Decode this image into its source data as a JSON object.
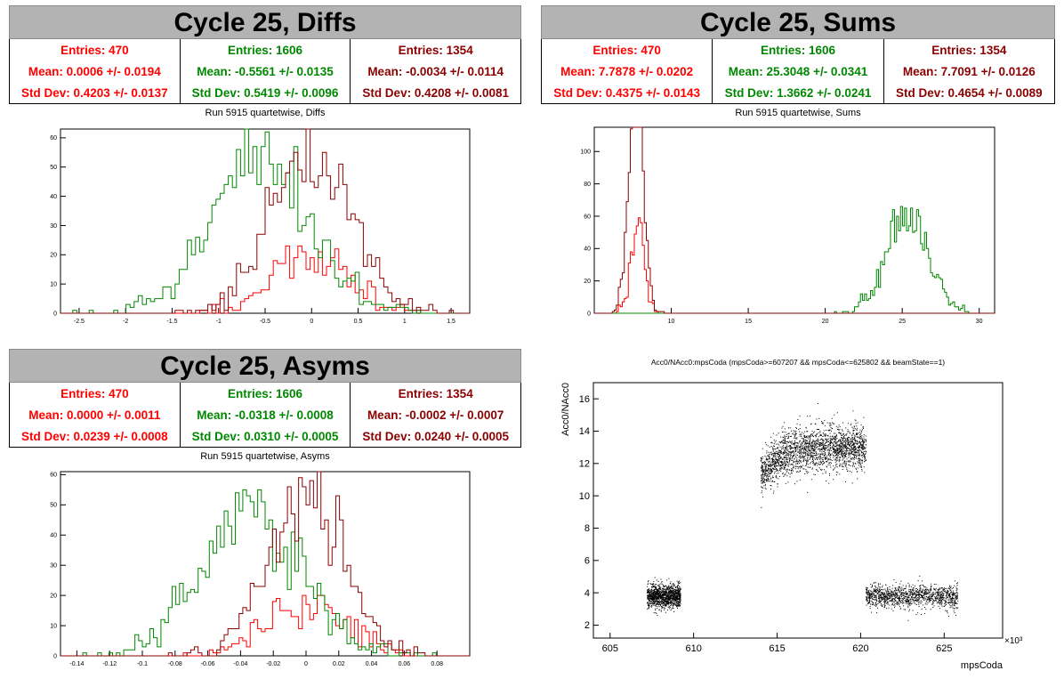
{
  "colors": {
    "red": "#ff0000",
    "green": "#008800",
    "darkred": "#8b0000",
    "banner": "#b3b3b3"
  },
  "panels": [
    {
      "id": "diffs",
      "banner": "Cycle 25, Diffs",
      "stats": [
        {
          "color": "#ff0000",
          "entries": "Entries: 470",
          "mean": "Mean: 0.0006 +/- 0.0194",
          "std": "Std Dev: 0.4203 +/- 0.0137"
        },
        {
          "color": "#008800",
          "entries": "Entries: 1606",
          "mean": "Mean: -0.5561 +/- 0.0135",
          "std": "Std Dev: 0.5419 +/- 0.0096"
        },
        {
          "color": "#8b0000",
          "entries": "Entries: 1354",
          "mean": "Mean: -0.0034 +/- 0.0114",
          "std": "Std Dev: 0.4208 +/- 0.0081"
        }
      ],
      "plot_title": "Run 5915 quartetwise, Diffs"
    },
    {
      "id": "sums",
      "banner": "Cycle 25, Sums",
      "stats": [
        {
          "color": "#ff0000",
          "entries": "Entries: 470",
          "mean": "Mean: 7.7878 +/- 0.0202",
          "std": "Std Dev: 0.4375 +/- 0.0143"
        },
        {
          "color": "#008800",
          "entries": "Entries: 1606",
          "mean": "Mean: 25.3048 +/- 0.0341",
          "std": "Std Dev: 1.3662 +/- 0.0241"
        },
        {
          "color": "#8b0000",
          "entries": "Entries: 1354",
          "mean": "Mean: 7.7091 +/- 0.0126",
          "std": "Std Dev: 0.4654 +/- 0.0089"
        }
      ],
      "plot_title": "Run 5915 quartetwise, Sums"
    },
    {
      "id": "asyms",
      "banner": "Cycle 25, Asyms",
      "stats": [
        {
          "color": "#ff0000",
          "entries": "Entries: 470",
          "mean": "Mean: 0.0000 +/- 0.0011",
          "std": "Std Dev: 0.0239 +/- 0.0008"
        },
        {
          "color": "#008800",
          "entries": "Entries: 1606",
          "mean": "Mean: -0.0318 +/- 0.0008",
          "std": "Std Dev: 0.0310 +/- 0.0005"
        },
        {
          "color": "#8b0000",
          "entries": "Entries: 1354",
          "mean": "Mean: -0.0002 +/- 0.0007",
          "std": "Std Dev: 0.0240 +/- 0.0005"
        }
      ],
      "plot_title": "Run 5915 quartetwise, Asyms"
    }
  ],
  "chart_data": [
    {
      "type": "bar",
      "id": "diffs",
      "title": "Run 5915 quartetwise, Diffs",
      "xlim": [
        -2.7,
        1.7
      ],
      "ylim": [
        0,
        63
      ],
      "xticks": [
        "-2.5",
        "-2",
        "-1.5",
        "-1",
        "-0.5",
        "0",
        "0.5",
        "1",
        "1.5"
      ],
      "yticks": [
        "0",
        "10",
        "20",
        "30",
        "40",
        "50",
        "60"
      ],
      "series": [
        {
          "color": "#ff0000",
          "mean": 0.0006,
          "std": 0.4203,
          "entries": 470
        },
        {
          "color": "#008800",
          "mean": -0.5561,
          "std": 0.5419,
          "entries": 1606
        },
        {
          "color": "#8b0000",
          "mean": -0.0034,
          "std": 0.4208,
          "entries": 1354
        }
      ]
    },
    {
      "type": "bar",
      "id": "sums",
      "title": "Run 5915 quartetwise, Sums",
      "xlim": [
        5,
        31
      ],
      "ylim": [
        0,
        115
      ],
      "xticks": [
        "10",
        "15",
        "20",
        "25",
        "30"
      ],
      "yticks": [
        "0",
        "20",
        "40",
        "60",
        "80",
        "100"
      ],
      "series": [
        {
          "color": "#ff0000",
          "mean": 7.7878,
          "std": 0.4375,
          "entries": 470
        },
        {
          "color": "#008800",
          "mean": 25.3048,
          "std": 1.3662,
          "entries": 1606
        },
        {
          "color": "#8b0000",
          "mean": 7.7091,
          "std": 0.4654,
          "entries": 1354
        }
      ]
    },
    {
      "type": "bar",
      "id": "asyms",
      "title": "Run 5915 quartetwise, Asyms",
      "xlim": [
        -0.15,
        0.1
      ],
      "ylim": [
        0,
        61
      ],
      "xticks": [
        "-0.14",
        "-0.12",
        "-0.1",
        "-0.08",
        "-0.06",
        "-0.04",
        "-0.02",
        "0",
        "0.02",
        "0.04",
        "0.06",
        "0.08"
      ],
      "yticks": [
        "0",
        "10",
        "20",
        "30",
        "40",
        "50",
        "60"
      ],
      "series": [
        {
          "color": "#ff0000",
          "mean": 0.0,
          "std": 0.0239,
          "entries": 470
        },
        {
          "color": "#008800",
          "mean": -0.0318,
          "std": 0.031,
          "entries": 1606
        },
        {
          "color": "#8b0000",
          "mean": -0.0002,
          "std": 0.024,
          "entries": 1354
        }
      ]
    },
    {
      "type": "scatter",
      "id": "scatter",
      "title": "Acc0/NAcc0:mpsCoda (mpsCoda>=607207 && mpsCoda<=625802 && beamState==1)",
      "xlabel": "mpsCoda",
      "ylabel": "Acc0/NAcc0",
      "x_exponent": "×10³",
      "xlim": [
        604,
        628.5
      ],
      "ylim": [
        1.2,
        17
      ],
      "xticks": [
        "605",
        "610",
        "615",
        "620",
        "625"
      ],
      "yticks": [
        "2",
        "4",
        "6",
        "8",
        "10",
        "12",
        "14",
        "16"
      ],
      "clusters": [
        {
          "x": [
            607.2,
            609.2
          ],
          "y_center": 3.8,
          "y_spread": 0.35
        },
        {
          "x": [
            614.0,
            620.3
          ],
          "y_center": 12.8,
          "y_spread": 0.7
        },
        {
          "x": [
            620.3,
            625.8
          ],
          "y_center": 3.8,
          "y_spread": 0.35
        }
      ]
    }
  ]
}
